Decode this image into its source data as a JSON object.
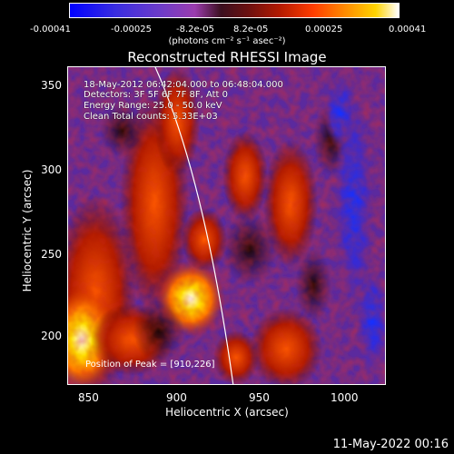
{
  "colorbar": {
    "ticks": [
      "-0.00041",
      "-0.00025",
      "-8.2e-05",
      "8.2e-05",
      "0.00025",
      "0.00041"
    ],
    "unit": "(photons cm⁻² s⁻¹ asec⁻²)"
  },
  "plot": {
    "title": "Reconstructed RHESSI Image",
    "xlabel": "Heliocentric X (arcsec)",
    "ylabel": "Heliocentric Y (arcsec)",
    "xticks": [
      "850",
      "900",
      "950",
      "1000"
    ],
    "yticks": [
      "350",
      "300",
      "250",
      "200"
    ]
  },
  "info": {
    "time_range": "18-May-2012 06:42:04.000 to 06:48:04.000",
    "detectors": "Detectors: 3F 5F 6F 7F 8F, Att 0",
    "energy": "Energy Range: 25.0 - 50.0 keV",
    "clean": "Clean     Total counts: 5.33E+03",
    "peak": "Position of Peak = [910,226]"
  },
  "footer": {
    "timestamp": "11-May-2022 00:16"
  }
}
